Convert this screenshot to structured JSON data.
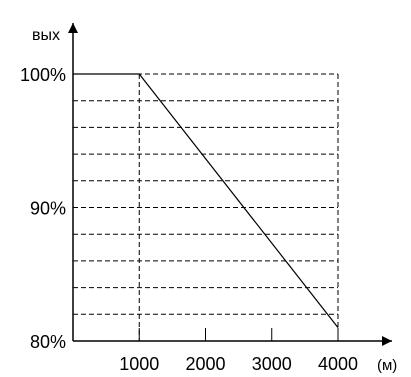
{
  "chart_data": {
    "type": "line",
    "title": "",
    "xlabel": "(м)",
    "ylabel": "вых",
    "x_ticks": [
      "1000",
      "2000",
      "3000",
      "4000"
    ],
    "y_ticks": [
      "80%",
      "90%",
      "100%"
    ],
    "xlim": [
      0,
      4000
    ],
    "ylim": [
      80,
      100
    ],
    "grid": "dashed",
    "series": [
      {
        "x": [
          0,
          1000,
          4000
        ],
        "y": [
          100,
          100,
          81
        ]
      }
    ]
  }
}
